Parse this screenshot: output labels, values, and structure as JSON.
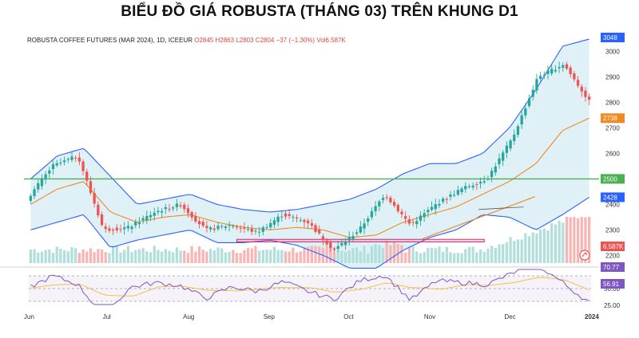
{
  "headline": "BIỂU ĐỒ GIÁ ROBUSTA (THÁNG 03) TRÊN KHUNG D1",
  "info": {
    "symbol": "ROBUSTA COFFEE FUTURES (MAR 2024), 1D, ICEEUR",
    "open": "O2845",
    "high": "H2863",
    "low": "L2803",
    "close": "C2804",
    "change": "−37 (−1.30%)",
    "volume": "Vol6.587K"
  },
  "price_axis": {
    "ticks": [
      "3000",
      "2900",
      "2800",
      "2700",
      "2600",
      "2400",
      "2300",
      "2200"
    ],
    "badges": {
      "upper_band": "3048",
      "sma": "2738",
      "level": "2500",
      "lower_band": "2428",
      "volume": "6.587K"
    }
  },
  "rsi_axis": {
    "ticks": [
      "58.95",
      "50.00",
      "25.00"
    ],
    "badges": {
      "upper": "70.77",
      "rsi": "56.91"
    }
  },
  "time_axis": [
    "Jun",
    "Jul",
    "Aug",
    "Sep",
    "Oct",
    "Nov",
    "Dec",
    "2024"
  ],
  "colors": {
    "up": "#26a69a",
    "down": "#ef5350",
    "band": "#2962ff",
    "sma": "#f08a24",
    "level": "#4caf50",
    "zone": "#e91e63"
  },
  "chart_data": {
    "type": "line",
    "title": "BIỂU ĐỒ GIÁ ROBUSTA (THÁNG 03) TRÊN KHUNG D1",
    "x": [
      "Jun",
      "Jul",
      "Aug",
      "Sep",
      "Oct",
      "Nov",
      "Dec",
      "2024"
    ],
    "close_path": [
      2420,
      2550,
      2590,
      2300,
      2310,
      2370,
      2400,
      2300,
      2320,
      2290,
      2360,
      2330,
      2220,
      2300,
      2440,
      2320,
      2400,
      2460,
      2500,
      2660,
      2900,
      2950,
      2804
    ],
    "bollinger_upper": [
      2500,
      2590,
      2620,
      2510,
      2400,
      2420,
      2440,
      2400,
      2380,
      2370,
      2380,
      2400,
      2420,
      2460,
      2520,
      2560,
      2560,
      2600,
      2700,
      2850,
      3020,
      3048
    ],
    "bollinger_lower": [
      2300,
      2330,
      2360,
      2230,
      2260,
      2280,
      2300,
      2250,
      2250,
      2260,
      2240,
      2200,
      2150,
      2150,
      2220,
      2270,
      2300,
      2360,
      2350,
      2300,
      2360,
      2428
    ],
    "sma": [
      2400,
      2460,
      2490,
      2370,
      2330,
      2350,
      2360,
      2330,
      2310,
      2300,
      2310,
      2300,
      2270,
      2280,
      2330,
      2360,
      2390,
      2440,
      2490,
      2560,
      2690,
      2738
    ],
    "horizontal_level": 2500,
    "support_zone": [
      2253,
      2263
    ],
    "ylim": [
      2170,
      3070
    ],
    "last_price": 2804,
    "volume_last": "6.587K",
    "rsi_last": 56.91
  }
}
